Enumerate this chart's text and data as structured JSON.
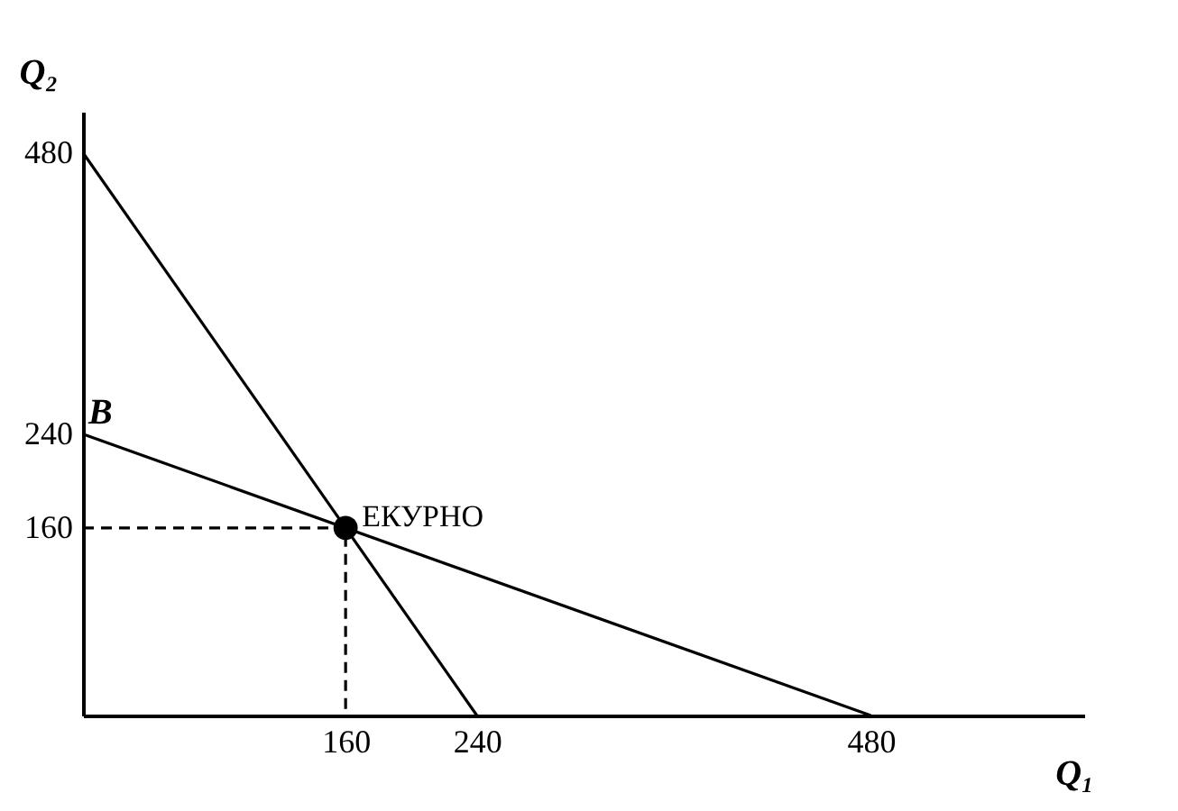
{
  "chart_data": {
    "type": "line",
    "xlabel": "Q₁",
    "ylabel": "Q₂",
    "xlim": [
      0,
      610
    ],
    "ylim": [
      0,
      515
    ],
    "xticks": [
      160,
      240,
      480
    ],
    "yticks": [
      160,
      240,
      480
    ],
    "grid": false,
    "series": [
      {
        "color": "#000000",
        "x": [
          0,
          240
        ],
        "values": [
          480,
          0
        ]
      },
      {
        "color": "#000000",
        "x": [
          0,
          480
        ],
        "values": [
          240,
          0
        ]
      },
      {
        "color": "#000000",
        "line_style": "dashed",
        "x": [
          0,
          160,
          160
        ],
        "values": [
          160,
          160,
          0
        ]
      },
      {
        "type": "scatter",
        "color": "#000000",
        "marker": "circle",
        "x": [
          160
        ],
        "values": [
          160
        ]
      }
    ],
    "annotations": [
      {
        "text": "B",
        "x": 0,
        "y": 240
      },
      {
        "text": "EКУРНО",
        "x": 160,
        "y": 160
      }
    ]
  }
}
